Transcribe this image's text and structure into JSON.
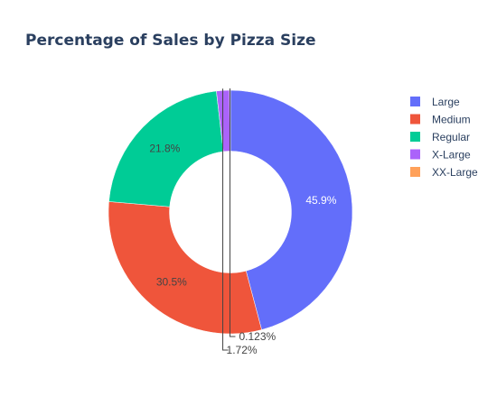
{
  "chart_data": {
    "type": "pie",
    "hole": 0.5,
    "title": "Percentage of Sales by Pizza Size",
    "categories": [
      "Large",
      "Medium",
      "Regular",
      "X-Large",
      "XX-Large"
    ],
    "values": [
      45.9,
      30.5,
      21.8,
      1.72,
      0.123
    ],
    "labels": [
      "45.9%",
      "30.5%",
      "21.8%",
      "1.72%",
      "0.123%"
    ],
    "colors": [
      "#636efa",
      "#ef553b",
      "#00cc96",
      "#ab63fa",
      "#ffa15a"
    ],
    "legend_position": "top-right",
    "direction": "clockwise",
    "start_angle": "12 o'clock"
  }
}
